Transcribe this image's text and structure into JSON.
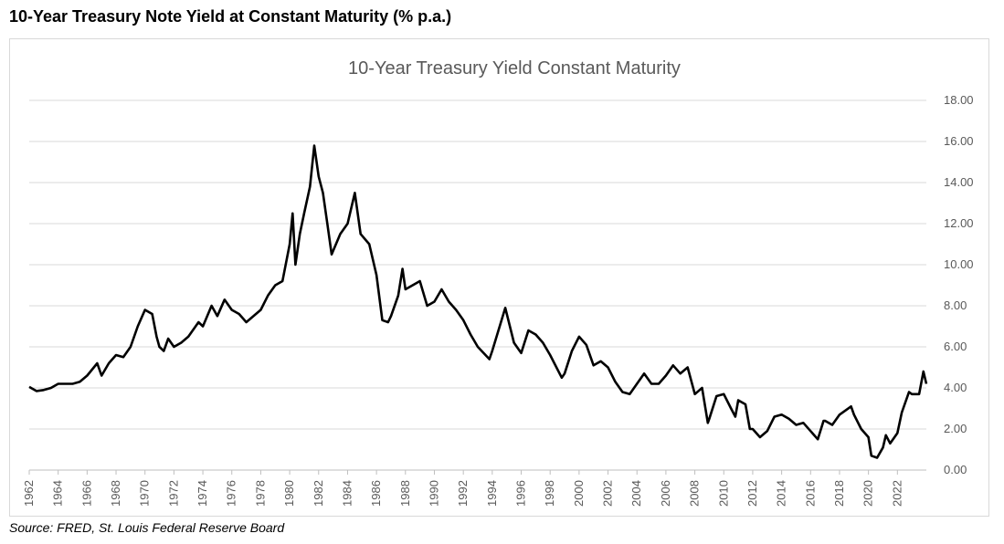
{
  "heading": "10-Year Treasury Note Yield at Constant Maturity (% p.a.)",
  "source": "Source: FRED, St. Louis Federal Reserve Board",
  "colors": {
    "line": "#000000",
    "grid": "#d9d9d9",
    "axis": "#bfbfbf",
    "text": "#595959"
  },
  "chart_data": {
    "type": "line",
    "title": "10-Year Treasury Yield Constant Maturity",
    "xlabel": "",
    "ylabel": "",
    "xlim": [
      1962,
      2024
    ],
    "ylim": [
      0,
      18
    ],
    "y_ticks": [
      "0.00",
      "2.00",
      "4.00",
      "6.00",
      "8.00",
      "10.00",
      "12.00",
      "14.00",
      "16.00",
      "18.00"
    ],
    "x_ticks": [
      "1962",
      "1964",
      "1966",
      "1968",
      "1970",
      "1972",
      "1974",
      "1976",
      "1978",
      "1980",
      "1982",
      "1984",
      "1986",
      "1988",
      "1990",
      "1992",
      "1994",
      "1996",
      "1998",
      "2000",
      "2002",
      "2004",
      "2006",
      "2008",
      "2010",
      "2012",
      "2014",
      "2016",
      "2018",
      "2020",
      "2022"
    ],
    "grid": "horizontal",
    "legend": "none",
    "series": [
      {
        "x": [
          1962.0,
          1962.5,
          1963.0,
          1963.5,
          1964.0,
          1964.5,
          1965.0,
          1965.5,
          1966.0,
          1966.7,
          1967.0,
          1967.5,
          1968.0,
          1968.5,
          1969.0,
          1969.5,
          1970.0,
          1970.5,
          1970.8,
          1971.0,
          1971.3,
          1971.6,
          1972.0,
          1972.5,
          1973.0,
          1973.7,
          1974.0,
          1974.6,
          1975.0,
          1975.5,
          1976.0,
          1976.5,
          1977.0,
          1977.5,
          1978.0,
          1978.5,
          1979.0,
          1979.5,
          1980.0,
          1980.2,
          1980.4,
          1980.7,
          1981.0,
          1981.4,
          1981.7,
          1982.0,
          1982.3,
          1982.6,
          1982.9,
          1983.5,
          1984.0,
          1984.5,
          1984.9,
          1985.5,
          1986.0,
          1986.4,
          1986.8,
          1987.0,
          1987.5,
          1987.8,
          1988.0,
          1988.5,
          1989.0,
          1989.5,
          1990.0,
          1990.5,
          1991.0,
          1991.5,
          1992.0,
          1992.5,
          1993.0,
          1993.8,
          1994.0,
          1994.9,
          1995.5,
          1996.0,
          1996.5,
          1997.0,
          1997.5,
          1998.0,
          1998.8,
          1999.0,
          1999.5,
          2000.0,
          2000.5,
          2001.0,
          2001.5,
          2002.0,
          2002.5,
          2003.0,
          2003.5,
          2004.0,
          2004.5,
          2005.0,
          2005.5,
          2006.0,
          2006.5,
          2007.0,
          2007.5,
          2008.0,
          2008.5,
          2008.9,
          2009.0,
          2009.5,
          2010.0,
          2010.5,
          2010.8,
          2011.0,
          2011.5,
          2011.8,
          2012.0,
          2012.5,
          2013.0,
          2013.5,
          2014.0,
          2014.5,
          2015.0,
          2015.5,
          2016.0,
          2016.5,
          2016.9,
          2017.0,
          2017.5,
          2018.0,
          2018.8,
          2019.0,
          2019.5,
          2020.0,
          2020.2,
          2020.6,
          2021.0,
          2021.2,
          2021.5,
          2022.0,
          2022.3,
          2022.8,
          2023.0,
          2023.5,
          2023.8,
          2024.0
        ],
        "y": [
          4.05,
          3.85,
          3.9,
          4.0,
          4.2,
          4.2,
          4.2,
          4.3,
          4.6,
          5.2,
          4.6,
          5.2,
          5.6,
          5.5,
          6.0,
          7.0,
          7.8,
          7.6,
          6.5,
          6.0,
          5.8,
          6.4,
          6.0,
          6.2,
          6.5,
          7.2,
          7.0,
          8.0,
          7.5,
          8.3,
          7.8,
          7.6,
          7.2,
          7.5,
          7.8,
          8.5,
          9.0,
          9.2,
          11.0,
          12.5,
          10.0,
          11.5,
          12.5,
          13.8,
          15.8,
          14.3,
          13.5,
          12.0,
          10.5,
          11.5,
          12.0,
          13.5,
          11.5,
          11.0,
          9.5,
          7.3,
          7.2,
          7.5,
          8.5,
          9.8,
          8.8,
          9.0,
          9.2,
          8.0,
          8.2,
          8.8,
          8.2,
          7.8,
          7.3,
          6.6,
          6.0,
          5.4,
          5.8,
          7.9,
          6.2,
          5.7,
          6.8,
          6.6,
          6.2,
          5.6,
          4.5,
          4.7,
          5.8,
          6.5,
          6.1,
          5.1,
          5.3,
          5.0,
          4.3,
          3.8,
          3.7,
          4.2,
          4.7,
          4.2,
          4.2,
          4.6,
          5.1,
          4.7,
          5.0,
          3.7,
          4.0,
          2.3,
          2.5,
          3.6,
          3.7,
          3.0,
          2.6,
          3.4,
          3.2,
          2.0,
          2.0,
          1.6,
          1.9,
          2.6,
          2.7,
          2.5,
          2.2,
          2.3,
          1.9,
          1.5,
          2.4,
          2.4,
          2.2,
          2.7,
          3.1,
          2.7,
          2.0,
          1.6,
          0.7,
          0.6,
          1.1,
          1.7,
          1.3,
          1.8,
          2.8,
          3.8,
          3.7,
          3.7,
          4.8,
          4.2
        ]
      }
    ]
  }
}
